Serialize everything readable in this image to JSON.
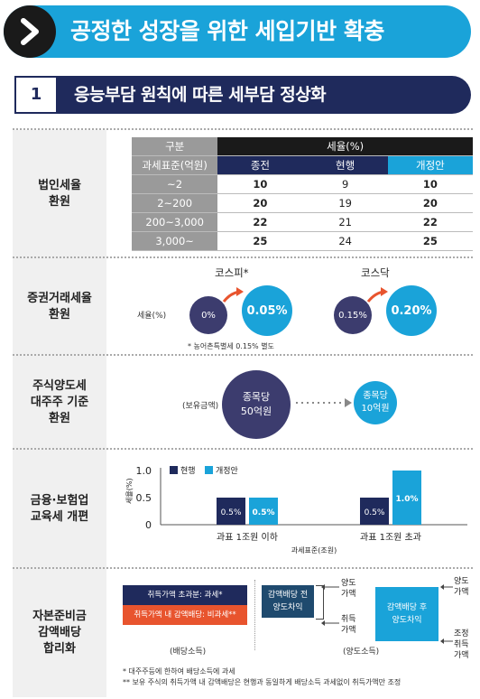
{
  "header": {
    "title": "공정한 성장을 위한 세입기반 확충"
  },
  "section": {
    "number": "1",
    "title": "응능부담 원칙에 따른 세부담 정상화"
  },
  "corp_tax": {
    "label_line1": "법인세율",
    "label_line2": "환원",
    "table": {
      "col_group": "구분",
      "col_rate": "세율(%)",
      "col_base": "과세표준(억원)",
      "col_prev": "종전",
      "col_curr": "현행",
      "col_new": "개정안",
      "rows": [
        {
          "base": "~2",
          "prev": "10",
          "curr": "9",
          "new": "10"
        },
        {
          "base": "2~200",
          "prev": "20",
          "curr": "19",
          "new": "20"
        },
        {
          "base": "200~3,000",
          "prev": "22",
          "curr": "21",
          "new": "22"
        },
        {
          "base": "3,000~",
          "prev": "25",
          "curr": "24",
          "new": "25"
        }
      ]
    }
  },
  "sec_tax": {
    "label_line1": "증권거래세율",
    "label_line2": "환원",
    "rate_label": "세율(%)",
    "kospi": {
      "title": "코스피*",
      "from": "0%",
      "to": "0.05%"
    },
    "kosdaq": {
      "title": "코스닥",
      "from": "0.15%",
      "to": "0.20%"
    },
    "note": "* 농어촌특별세 0.15% 별도"
  },
  "cap_gains": {
    "label_line1": "주식양도세",
    "label_line2": "대주주 기준",
    "label_line3": "환원",
    "holding_label": "(보유금액)",
    "from_line1": "종목당",
    "from_line2": "50억원",
    "to_line1": "종목당",
    "to_line2": "10억원"
  },
  "edu_tax": {
    "label_line1": "금융·보험업",
    "label_line2": "교육세 개편",
    "legend_curr": "현행",
    "legend_new": "개정안",
    "y_axis_label": "세율(%)",
    "x_axis_label": "과세표준(조원)",
    "y_ticks": [
      "1.0",
      "0.5",
      "0"
    ],
    "chart_data": {
      "type": "bar",
      "categories": [
        "과표 1조원 이하",
        "과표 1조원 초과"
      ],
      "series": [
        {
          "name": "현행",
          "values": [
            0.5,
            0.5
          ]
        },
        {
          "name": "개정안",
          "values": [
            0.5,
            1.0
          ]
        }
      ],
      "ylim": [
        0,
        1.0
      ],
      "value_labels": [
        [
          "0.5%",
          "0.5%"
        ],
        [
          "0.5%",
          "1.0%"
        ]
      ],
      "colors": {
        "현행": "#1f2a5c",
        "개정안": "#1aa3d9"
      }
    }
  },
  "dividend": {
    "label_line1": "자본준비금",
    "label_line2": "감액배당",
    "label_line3": "합리화",
    "box_taxed": "취득가액 초과분: 과세*",
    "box_nontaxed": "취득가액 내 감액배당: 비과세**",
    "caption_left": "(배당소득)",
    "before_line1": "감액배당 전",
    "before_line2": "양도차익",
    "after_line1": "감액배당 후",
    "after_line2": "양도차익",
    "transfer_line1": "양도",
    "transfer_line2": "가액",
    "acquire_line1": "취득",
    "acquire_line2": "가액",
    "transfer2_line1": "양도",
    "transfer2_line2": "가액",
    "adj_line1": "조정",
    "adj_line2": "취득",
    "adj_line3": "가액",
    "caption_right": "(양도소득)",
    "note1": "* 대주주등에 한하여 배당소득에 과세",
    "note2": "** 보유 주식의 취득가액 내 감액배당은 현행과 동일하게 배당소득 과세없이 취득가액만 조정"
  }
}
